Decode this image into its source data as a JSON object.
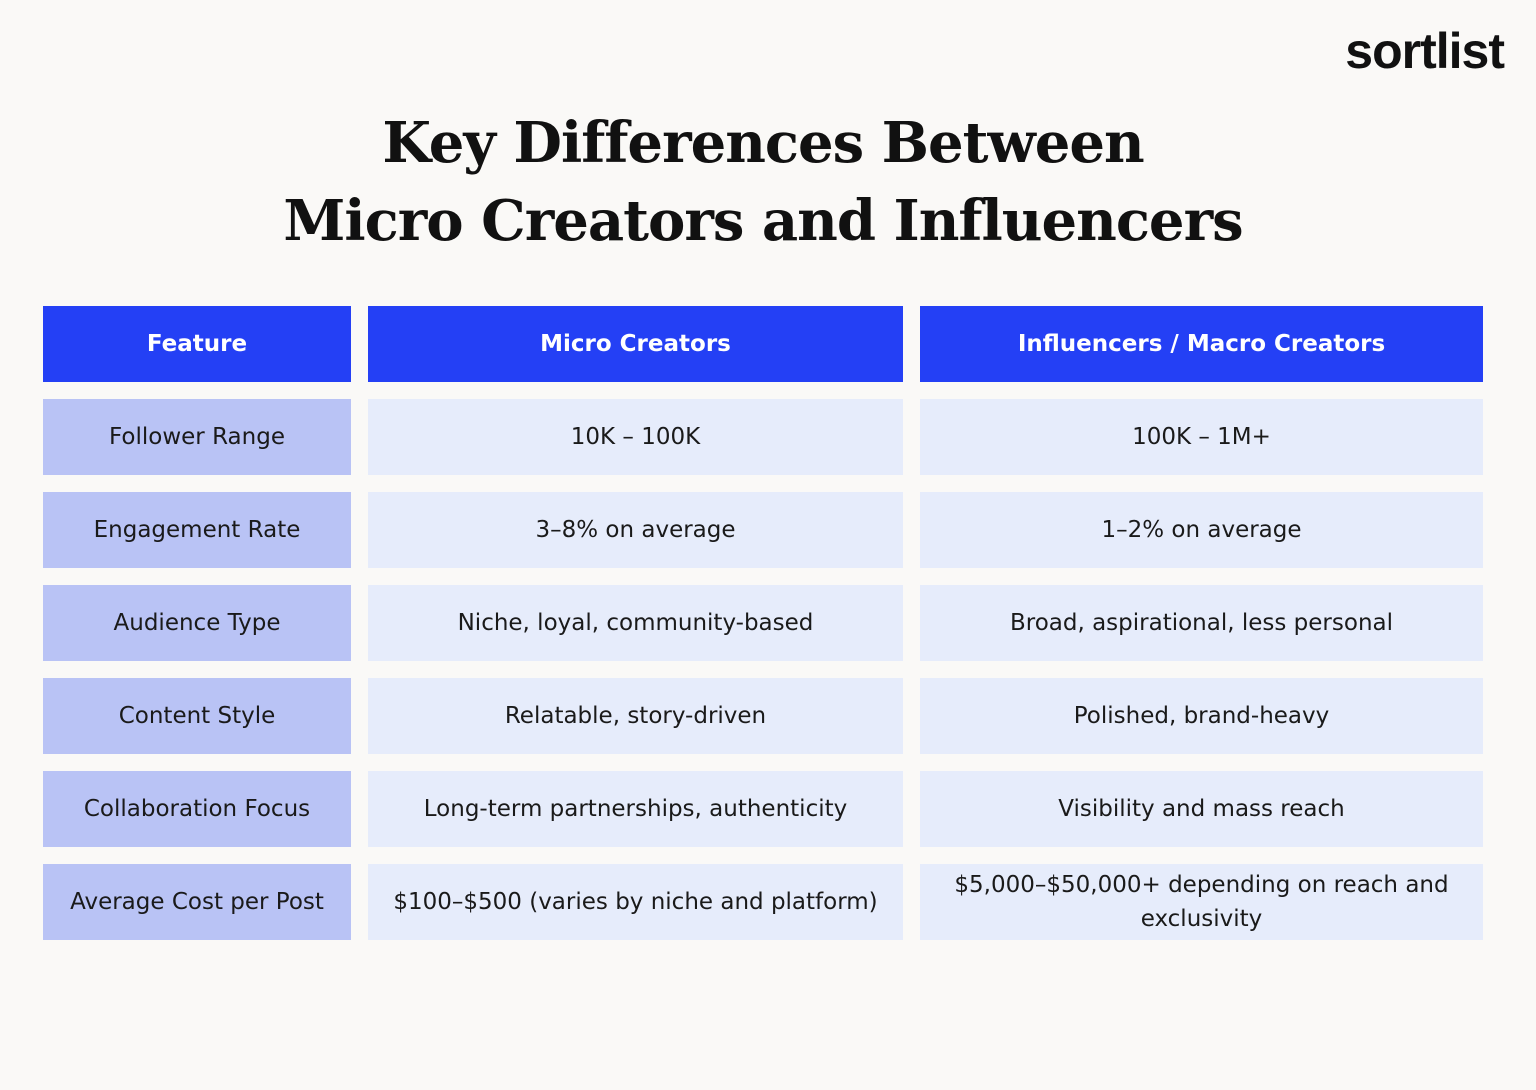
{
  "logo": "sortlist",
  "title": {
    "lines": [
      "Key Differences Between",
      "Micro Creators and Influencers"
    ]
  },
  "table": {
    "header": [
      "Feature",
      "Micro Creators",
      "Influencers / Macro Creators"
    ],
    "rows": [
      [
        "Follower Range",
        "10K – 100K",
        "100K – 1M+"
      ],
      [
        "Engagement Rate",
        "3–8% on average",
        "1–2% on average"
      ],
      [
        "Audience Type",
        "Niche, loyal, community-based",
        "Broad, aspirational, less personal"
      ],
      [
        "Content Style",
        "Relatable, story-driven",
        "Polished, brand-heavy"
      ],
      [
        "Collaboration Focus",
        "Long-term partnerships, authenticity",
        "Visibility and mass reach"
      ],
      [
        "Average Cost per Post",
        "$100–$500 (varies by niche and platform)",
        "$5,000–$50,000+ depending on reach and exclusivity"
      ]
    ]
  }
}
